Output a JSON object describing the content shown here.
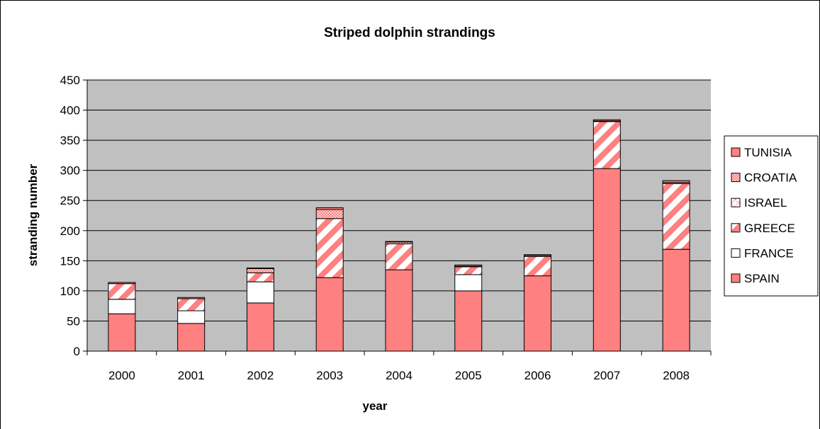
{
  "chart_data": {
    "type": "bar",
    "stacked": true,
    "title": "Striped dolphin strandings",
    "xlabel": "year",
    "ylabel": "stranding number",
    "ylim": [
      0,
      450
    ],
    "yticks": [
      0,
      50,
      100,
      150,
      200,
      250,
      300,
      350,
      400,
      450
    ],
    "grid": true,
    "legend_position": "right",
    "categories": [
      "2000",
      "2001",
      "2002",
      "2003",
      "2004",
      "2005",
      "2006",
      "2007",
      "2008"
    ],
    "series": [
      {
        "name": "SPAIN",
        "values": [
          62,
          46,
          80,
          122,
          135,
          100,
          125,
          303,
          169
        ],
        "color": "#FF8080",
        "pattern": "solid"
      },
      {
        "name": "FRANCE",
        "values": [
          24,
          21,
          35,
          0,
          0,
          27,
          0,
          0,
          0
        ],
        "color": "#FFFFFF",
        "pattern": "solid"
      },
      {
        "name": "GREECE",
        "values": [
          26,
          20,
          15,
          98,
          43,
          13,
          32,
          78,
          109
        ],
        "color": "#FF8080",
        "pattern": "wide-diagonal"
      },
      {
        "name": "ISRAEL",
        "values": [
          0,
          0,
          0,
          0,
          0,
          0,
          0,
          0,
          0
        ],
        "color": "#FF8080",
        "pattern": "checker"
      },
      {
        "name": "CROATIA",
        "values": [
          0,
          0,
          7,
          15,
          3,
          1,
          2,
          1,
          2
        ],
        "color": "#FF8080",
        "pattern": "dotted"
      },
      {
        "name": "TUNISIA",
        "values": [
          2,
          2,
          1,
          3,
          1,
          2,
          1,
          2,
          3
        ],
        "color": "#FF8080",
        "pattern": "solid"
      }
    ],
    "legend_order": [
      "TUNISIA",
      "CROATIA",
      "ISRAEL",
      "GREECE",
      "FRANCE",
      "SPAIN"
    ],
    "plot_background": "#C0C0C0",
    "gridline_color": "#000000",
    "bar_outline_color": "#000000"
  }
}
